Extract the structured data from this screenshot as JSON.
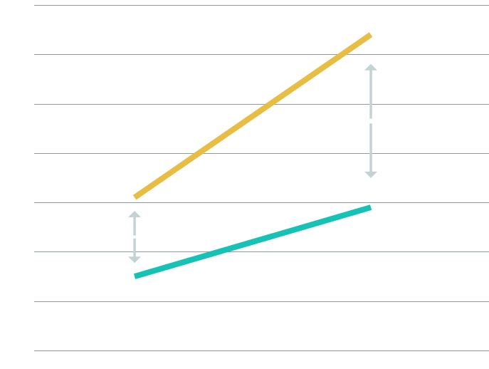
{
  "chart_data": {
    "type": "line",
    "title": "",
    "xlabel": "",
    "ylabel": "",
    "x": [
      0,
      1
    ],
    "xlim": [
      -0.425,
      1.5
    ],
    "ylim": [
      0,
      7
    ],
    "grid": true,
    "legend": "none",
    "series": [
      {
        "color": "#E8BD44",
        "values": [
          3.1,
          6.4
        ]
      },
      {
        "color": "#16C1B5",
        "values": [
          1.5,
          2.9
        ]
      }
    ],
    "annotations": [
      {
        "type": "gap-arrows",
        "x": 0,
        "from": 1.5,
        "to": 3.1,
        "color": "#C3D3D3"
      },
      {
        "type": "gap-arrows",
        "x": 1,
        "from": 2.9,
        "to": 6.4,
        "color": "#C3D3D3"
      }
    ],
    "grid_color": "#8E9AA0"
  }
}
